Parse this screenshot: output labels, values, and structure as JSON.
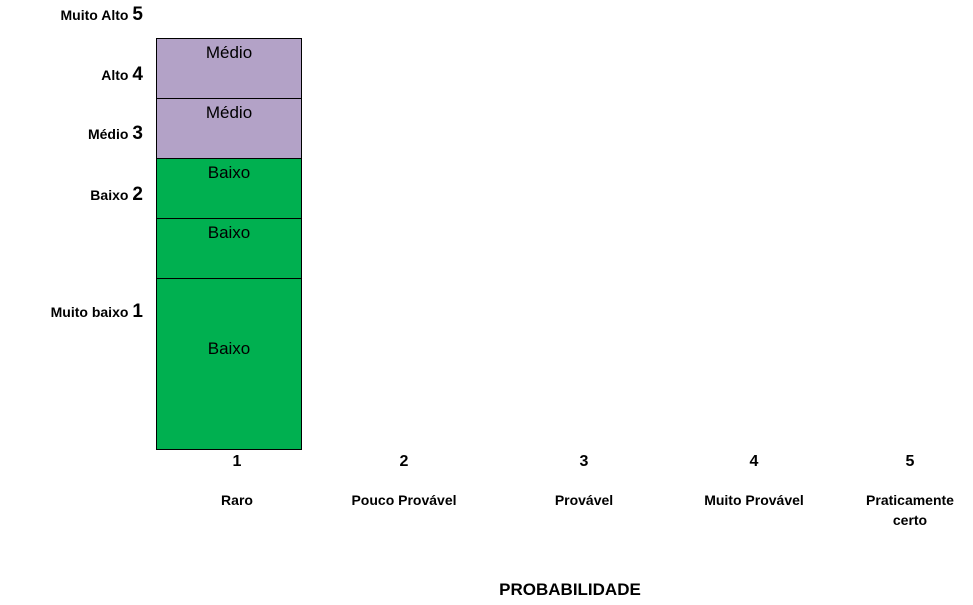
{
  "chart_data": {
    "type": "heatmap",
    "title": "",
    "xlabel": "PROBABILIDADE",
    "ylabel": "",
    "x_levels": [
      {
        "num": "1",
        "label": "Raro"
      },
      {
        "num": "2",
        "label": "Pouco Provável"
      },
      {
        "num": "3",
        "label": "Provável"
      },
      {
        "num": "4",
        "label": "Muito Provável"
      },
      {
        "num": "5",
        "label": "Praticamente certo"
      }
    ],
    "y_levels": [
      {
        "label": "Muito Alto",
        "num": "5"
      },
      {
        "label": "Alto",
        "num": "4"
      },
      {
        "label": "Médio",
        "num": "3"
      },
      {
        "label": "Baixo",
        "num": "2"
      },
      {
        "label": "Muito baixo",
        "num": "1"
      }
    ],
    "cells": [
      {
        "x": 1,
        "row": 5,
        "label": "Médio",
        "color": "#b3a2c7"
      },
      {
        "x": 1,
        "row": 4,
        "label": "Médio",
        "color": "#b3a2c7"
      },
      {
        "x": 1,
        "row": 3,
        "label": "Baixo",
        "color": "#00b050"
      },
      {
        "x": 1,
        "row": 2,
        "label": "Baixo",
        "color": "#00b050"
      },
      {
        "x": 1,
        "row": 1,
        "label": "Baixo",
        "color": "#00b050"
      }
    ]
  }
}
